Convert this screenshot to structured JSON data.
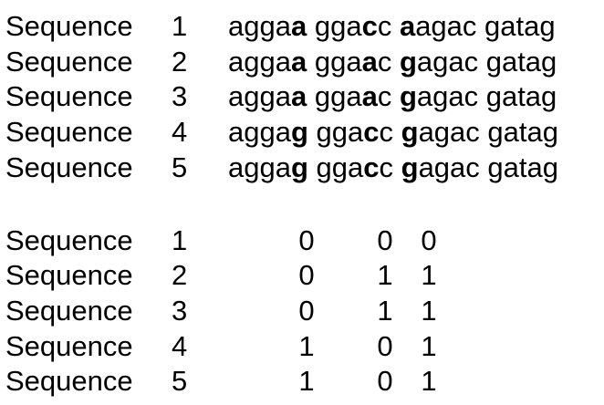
{
  "sequences": [
    {
      "label": "Sequence",
      "num": "1",
      "parts": [
        [
          "agga",
          ""
        ],
        [
          "a",
          "b"
        ],
        [
          " gga",
          ""
        ],
        [
          "c",
          "b"
        ],
        [
          "c",
          ""
        ],
        [
          " ",
          ""
        ],
        [
          "a",
          "b"
        ],
        [
          "agac gatag",
          ""
        ]
      ]
    },
    {
      "label": "Sequence",
      "num": "2",
      "parts": [
        [
          "agga",
          ""
        ],
        [
          "a",
          "b"
        ],
        [
          " gga",
          ""
        ],
        [
          "a",
          "b"
        ],
        [
          "c",
          ""
        ],
        [
          " ",
          ""
        ],
        [
          "g",
          "b"
        ],
        [
          "agac gatag",
          ""
        ]
      ]
    },
    {
      "label": "Sequence",
      "num": "3",
      "parts": [
        [
          "agga",
          ""
        ],
        [
          "a",
          "b"
        ],
        [
          " gga",
          ""
        ],
        [
          "a",
          "b"
        ],
        [
          "c",
          ""
        ],
        [
          " ",
          ""
        ],
        [
          "g",
          "b"
        ],
        [
          "agac gatag",
          ""
        ]
      ]
    },
    {
      "label": "Sequence",
      "num": "4",
      "parts": [
        [
          "agga",
          ""
        ],
        [
          "g",
          "b"
        ],
        [
          " gga",
          ""
        ],
        [
          "c",
          "b"
        ],
        [
          "c",
          ""
        ],
        [
          " ",
          ""
        ],
        [
          "g",
          "b"
        ],
        [
          "agac gatag",
          ""
        ]
      ]
    },
    {
      "label": "Sequence",
      "num": "5",
      "parts": [
        [
          "agga",
          ""
        ],
        [
          "g",
          "b"
        ],
        [
          " gga",
          ""
        ],
        [
          "c",
          "b"
        ],
        [
          "c",
          ""
        ],
        [
          " ",
          ""
        ],
        [
          "g",
          "b"
        ],
        [
          "agac gatag",
          ""
        ]
      ]
    }
  ],
  "binary": [
    {
      "label": "Sequence",
      "num": "1",
      "bits": [
        "0",
        "0",
        "0"
      ]
    },
    {
      "label": "Sequence",
      "num": "2",
      "bits": [
        "0",
        "1",
        "1"
      ]
    },
    {
      "label": "Sequence",
      "num": "3",
      "bits": [
        "0",
        "1",
        "1"
      ]
    },
    {
      "label": "Sequence",
      "num": "4",
      "bits": [
        "1",
        "0",
        "1"
      ]
    },
    {
      "label": "Sequence",
      "num": "5",
      "bits": [
        "1",
        "0",
        "1"
      ]
    }
  ]
}
